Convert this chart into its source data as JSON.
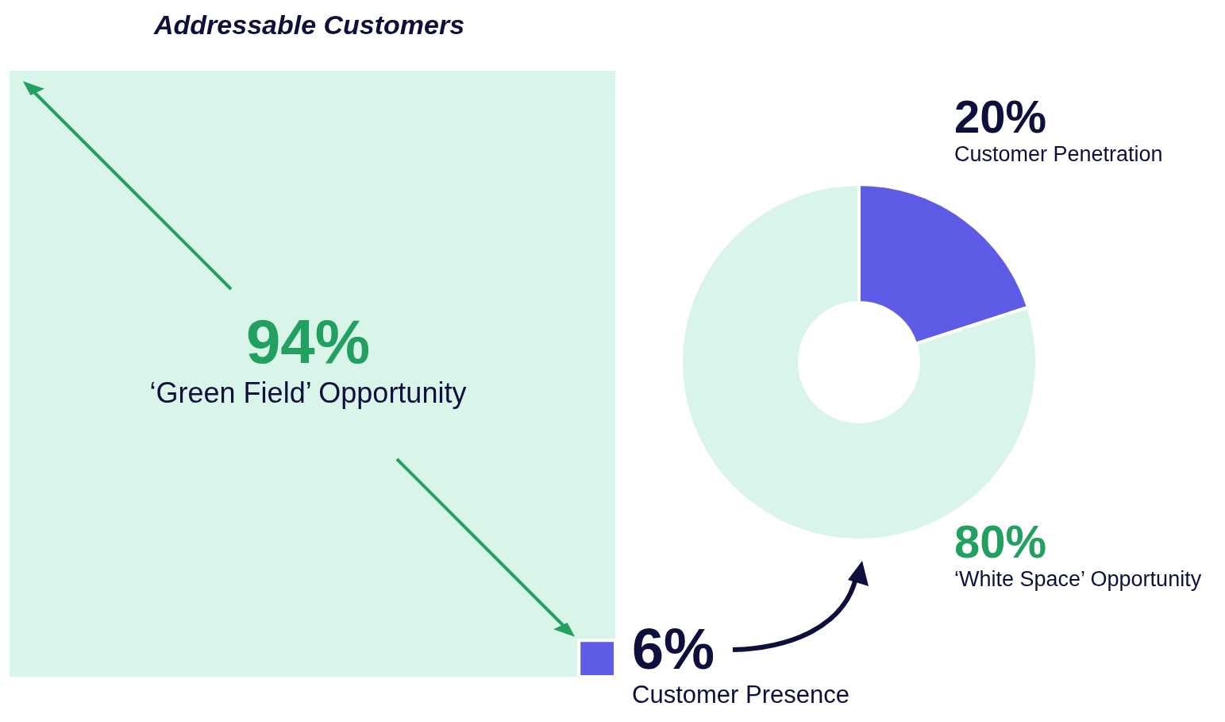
{
  "chart_data": [
    {
      "type": "other",
      "title": "Addressable Customers",
      "categories": [
        "‘Green Field’ Opportunity",
        "Customer Presence"
      ],
      "values": [
        94,
        6
      ],
      "value_labels": [
        "94%",
        "6%"
      ],
      "colors": [
        "#d9f4e8",
        "#5e5ce6"
      ]
    },
    {
      "type": "donut",
      "categories": [
        "Customer Penetration",
        "‘White Space’ Opportunity"
      ],
      "values": [
        20,
        80
      ],
      "value_labels": [
        "20%",
        "80%"
      ],
      "colors": [
        "#5e5ce6",
        "#d9f4e8"
      ]
    }
  ]
}
